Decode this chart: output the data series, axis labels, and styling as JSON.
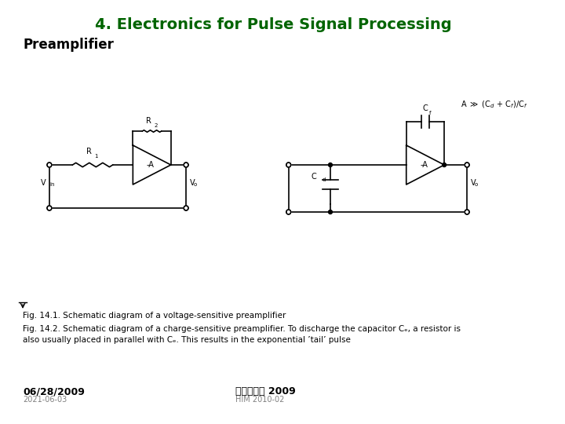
{
  "title": "4. Electronics for Pulse Signal Processing",
  "title_color": "#006400",
  "title_fontsize": 14,
  "subtitle": "Preamplifier",
  "subtitle_fontsize": 12,
  "date_left": "06/28/2009",
  "date_left_sub": "2021-06-03",
  "date_right": "핵물리학교 2009",
  "date_right_sub": "HIM 2010-02",
  "fig1_caption": "Fig. 14.1. Schematic diagram of a voltage-sensitive preamplifier",
  "fig2_caption": "Fig. 14.2. Schematic diagram of a charge-sensitive preamplifier. To discharge the capacitor γₑ, a resistor is also usually placed in parallel with Cₑ. This results in the exponential tail pulse",
  "bg_color": "#ffffff",
  "line_color": "#000000"
}
